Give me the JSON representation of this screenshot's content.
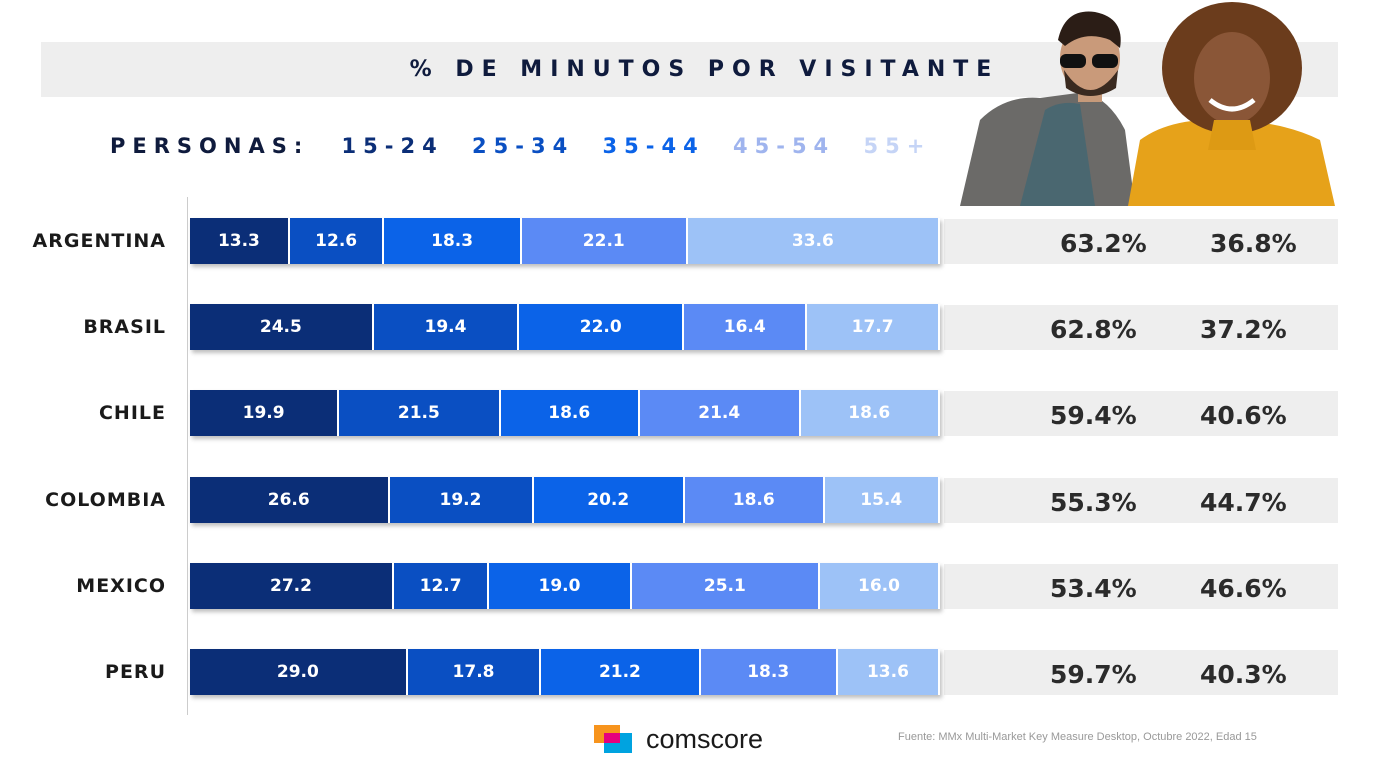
{
  "title": "% DE MINUTOS POR VISITANTE",
  "legend": {
    "label": "PERSONAS:",
    "items": [
      {
        "text": "15-24",
        "color": "#0b2e77"
      },
      {
        "text": "25-34",
        "color": "#0a4fc2"
      },
      {
        "text": "35-44",
        "color": "#0b63e8"
      },
      {
        "text": "45-54",
        "color": "#9fb4ee"
      },
      {
        "text": "55+",
        "color": "#c5d4f6"
      }
    ]
  },
  "colors": {
    "segments": [
      "#0b2e77",
      "#0a4fc2",
      "#0b63e8",
      "#5b8af5",
      "#9dc2f7"
    ]
  },
  "chart_data": {
    "type": "bar",
    "orientation": "horizontal",
    "stacked": true,
    "categories": [
      "ARGENTINA",
      "BRASIL",
      "CHILE",
      "COLOMBIA",
      "MEXICO",
      "PERU"
    ],
    "series": [
      {
        "name": "15-24",
        "values": [
          13.3,
          24.5,
          19.9,
          26.6,
          27.2,
          29.0
        ]
      },
      {
        "name": "25-34",
        "values": [
          12.6,
          19.4,
          21.5,
          19.2,
          12.7,
          17.8
        ]
      },
      {
        "name": "35-44",
        "values": [
          18.3,
          22.0,
          18.6,
          20.2,
          19.0,
          21.2
        ]
      },
      {
        "name": "45-54",
        "values": [
          22.1,
          16.4,
          21.4,
          18.6,
          25.1,
          18.3
        ]
      },
      {
        "name": "55+",
        "values": [
          33.6,
          17.7,
          18.6,
          15.4,
          16.0,
          13.6
        ]
      }
    ],
    "value_labels": [
      [
        "13.3",
        "12.6",
        "18.3",
        "22.1",
        "33.6"
      ],
      [
        "24.5",
        "19.4",
        "22.0",
        "16.4",
        "17.7"
      ],
      [
        "19.9",
        "21.5",
        "18.6",
        "21.4",
        "18.6"
      ],
      [
        "26.6",
        "19.2",
        "20.2",
        "18.6",
        "15.4"
      ],
      [
        "27.2",
        "12.7",
        "19.0",
        "25.1",
        "16.0"
      ],
      [
        "29.0",
        "17.8",
        "21.2",
        "18.3",
        "13.6"
      ]
    ],
    "side_values": [
      [
        "63.2%",
        "36.8%"
      ],
      [
        "62.8%",
        "37.2%"
      ],
      [
        "59.4%",
        "40.6%"
      ],
      [
        "55.3%",
        "44.7%"
      ],
      [
        "53.4%",
        "46.6%"
      ],
      [
        "59.7%",
        "40.3%"
      ]
    ],
    "xlim": [
      0,
      100
    ]
  },
  "brand": {
    "name": "comscore",
    "logo_colors": [
      "#f7941d",
      "#00a3e0",
      "#e5007e"
    ]
  },
  "source": "Fuente: MMx Multi-Market Key Measure Desktop, Octubre 2022, Edad 15"
}
